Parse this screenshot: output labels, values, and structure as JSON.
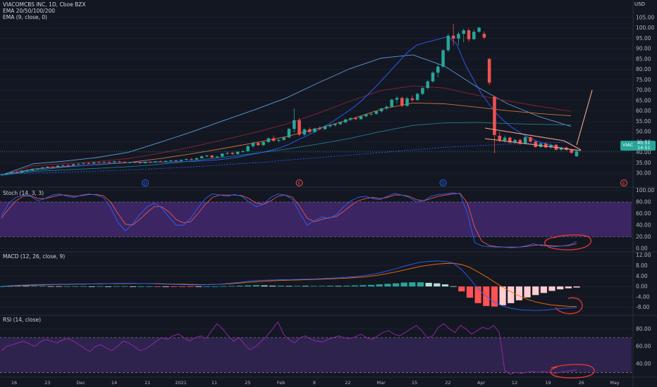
{
  "header": {
    "symbol_line": "VIACOMCBS INC, 1D, Cboe BZX",
    "ema_ribbon": "EMA 20/50/100/200",
    "ema_single": "EMA (9, close, 0)",
    "currency": "USD"
  },
  "price_tag": {
    "symbol": "VIAC",
    "value": "40.51",
    "countdown": "14:51"
  },
  "colors": {
    "background": "#131722",
    "grid": "#1f2433",
    "up": "#26a69a",
    "down": "#ef5350",
    "ema9": "#2962ff",
    "ema20": "#5e9ad6",
    "ema50": "#8b2430",
    "ema100": "#c8743a",
    "ema200": "#1e7f8a",
    "stoch_band": "#4a2b7a",
    "annotation": "#f7a48a",
    "circle": "#e53935"
  },
  "chart_data": [
    {
      "name": "price",
      "type": "candlestick",
      "ylim": [
        28,
        110
      ],
      "y_ticks": [
        30,
        35,
        40,
        45,
        50,
        55,
        60,
        65,
        70,
        75,
        80,
        85,
        90,
        95,
        100,
        105
      ],
      "last_price": 40.51,
      "candles": [
        [
          29.3,
          29.6,
          29.1,
          29.4
        ],
        [
          29.4,
          30.2,
          29.3,
          30.0
        ],
        [
          30.0,
          30.8,
          29.8,
          30.5
        ],
        [
          30.5,
          31.0,
          30.1,
          30.3
        ],
        [
          30.3,
          31.5,
          30.2,
          31.2
        ],
        [
          31.2,
          31.8,
          30.9,
          31.4
        ],
        [
          31.4,
          32.3,
          31.2,
          32.0
        ],
        [
          32.0,
          32.6,
          31.7,
          32.2
        ],
        [
          32.2,
          33.0,
          31.9,
          32.8
        ],
        [
          32.8,
          33.4,
          32.5,
          33.1
        ],
        [
          33.1,
          33.5,
          32.7,
          32.9
        ],
        [
          32.9,
          33.8,
          32.8,
          33.6
        ],
        [
          33.6,
          34.1,
          33.3,
          33.9
        ],
        [
          33.9,
          34.3,
          33.5,
          33.7
        ],
        [
          33.7,
          34.6,
          33.6,
          34.3
        ],
        [
          34.3,
          34.8,
          34.0,
          34.5
        ],
        [
          34.5,
          35.0,
          34.2,
          34.8
        ],
        [
          34.8,
          35.3,
          34.4,
          34.6
        ],
        [
          34.6,
          35.4,
          34.5,
          35.2
        ],
        [
          35.2,
          35.7,
          34.9,
          35.1
        ],
        [
          35.1,
          35.6,
          34.8,
          35.4
        ],
        [
          35.4,
          35.8,
          35.0,
          35.3
        ],
        [
          35.3,
          35.9,
          35.0,
          35.7
        ],
        [
          35.7,
          36.0,
          35.2,
          35.4
        ],
        [
          35.4,
          35.7,
          34.8,
          35.0
        ],
        [
          35.0,
          35.5,
          34.6,
          35.3
        ],
        [
          35.3,
          35.6,
          34.9,
          35.1
        ],
        [
          35.1,
          35.4,
          34.6,
          34.8
        ],
        [
          34.8,
          35.6,
          34.7,
          35.4
        ],
        [
          35.4,
          35.8,
          35.0,
          35.2
        ],
        [
          35.2,
          35.9,
          35.1,
          35.7
        ],
        [
          35.7,
          36.1,
          35.3,
          35.5
        ],
        [
          35.5,
          36.0,
          35.2,
          35.9
        ],
        [
          35.9,
          36.4,
          35.6,
          36.1
        ],
        [
          36.1,
          36.5,
          35.7,
          35.9
        ],
        [
          35.9,
          36.6,
          35.8,
          36.4
        ],
        [
          36.4,
          37.0,
          36.1,
          36.8
        ],
        [
          36.8,
          37.3,
          36.4,
          36.6
        ],
        [
          36.6,
          37.5,
          36.5,
          37.2
        ],
        [
          37.2,
          38.4,
          37.0,
          38.1
        ],
        [
          38.1,
          38.9,
          37.6,
          38.5
        ],
        [
          38.5,
          38.8,
          37.3,
          37.6
        ],
        [
          37.6,
          38.3,
          37.2,
          38.0
        ],
        [
          38.0,
          39.7,
          37.8,
          39.4
        ],
        [
          39.4,
          40.4,
          38.8,
          39.7
        ],
        [
          39.7,
          40.2,
          38.9,
          39.2
        ],
        [
          39.2,
          40.6,
          39.0,
          40.3
        ],
        [
          40.3,
          41.0,
          39.9,
          40.6
        ],
        [
          40.6,
          43.4,
          40.4,
          43.0
        ],
        [
          43.0,
          45.2,
          42.1,
          44.5
        ],
        [
          44.5,
          45.0,
          43.1,
          43.5
        ],
        [
          43.5,
          45.3,
          43.2,
          45.0
        ],
        [
          45.0,
          47.2,
          44.6,
          46.8
        ],
        [
          46.8,
          48.1,
          45.2,
          45.6
        ],
        [
          45.6,
          46.4,
          44.8,
          46.0
        ],
        [
          46.0,
          47.5,
          45.7,
          47.2
        ],
        [
          47.2,
          51.8,
          47.0,
          51.3
        ],
        [
          51.3,
          61.2,
          49.6,
          55.5
        ],
        [
          55.5,
          56.5,
          47.8,
          48.6
        ],
        [
          48.6,
          51.6,
          48.0,
          51.1
        ],
        [
          51.1,
          52.0,
          49.2,
          49.8
        ],
        [
          49.8,
          51.8,
          49.5,
          51.5
        ],
        [
          51.5,
          52.6,
          50.8,
          51.2
        ],
        [
          51.2,
          53.0,
          50.9,
          52.6
        ],
        [
          52.6,
          53.5,
          51.8,
          53.1
        ],
        [
          53.1,
          54.0,
          52.4,
          53.6
        ],
        [
          53.6,
          54.9,
          53.2,
          54.5
        ],
        [
          54.5,
          56.3,
          54.0,
          55.8
        ],
        [
          55.8,
          57.0,
          55.2,
          56.5
        ],
        [
          56.5,
          57.2,
          55.6,
          56.0
        ],
        [
          56.0,
          57.8,
          55.8,
          57.4
        ],
        [
          57.4,
          58.7,
          56.9,
          58.3
        ],
        [
          58.3,
          59.1,
          57.7,
          58.6
        ],
        [
          58.6,
          60.2,
          58.1,
          59.8
        ],
        [
          59.8,
          61.5,
          59.2,
          61.2
        ],
        [
          61.2,
          62.6,
          60.5,
          62.0
        ],
        [
          62.0,
          65.8,
          61.7,
          65.4
        ],
        [
          65.4,
          67.2,
          63.5,
          66.2
        ],
        [
          66.2,
          66.8,
          61.8,
          62.4
        ],
        [
          62.4,
          66.7,
          62.0,
          66.0
        ],
        [
          66.0,
          67.5,
          64.6,
          65.2
        ],
        [
          65.2,
          68.8,
          64.9,
          68.2
        ],
        [
          68.2,
          71.6,
          67.7,
          71.0
        ],
        [
          71.0,
          74.8,
          70.4,
          74.2
        ],
        [
          74.2,
          79.1,
          73.6,
          78.4
        ],
        [
          78.4,
          82.8,
          76.2,
          81.3
        ],
        [
          81.3,
          89.6,
          80.7,
          89.2
        ],
        [
          89.2,
          97.2,
          88.4,
          96.2
        ],
        [
          96.2,
          101.9,
          91.5,
          94.8
        ],
        [
          94.8,
          98.2,
          91.7,
          97.1
        ],
        [
          97.1,
          99.6,
          93.0,
          98.8
        ],
        [
          98.8,
          99.8,
          93.3,
          94.5
        ],
        [
          94.5,
          99.2,
          94.2,
          98.1
        ],
        [
          98.1,
          100.4,
          97.6,
          100.1
        ],
        [
          97.1,
          98.3,
          94.6,
          95.3
        ],
        [
          85.0,
          85.6,
          72.5,
          73.6
        ],
        [
          66.8,
          67.4,
          39.6,
          48.4
        ],
        [
          48.0,
          49.9,
          44.8,
          45.7
        ],
        [
          45.7,
          48.1,
          44.7,
          47.1
        ],
        [
          47.1,
          47.6,
          44.2,
          44.8
        ],
        [
          44.8,
          46.6,
          44.3,
          46.0
        ],
        [
          46.0,
          46.7,
          43.6,
          44.2
        ],
        [
          44.2,
          47.8,
          43.9,
          47.3
        ],
        [
          47.3,
          47.6,
          44.9,
          45.2
        ],
        [
          45.2,
          45.7,
          42.2,
          42.6
        ],
        [
          42.6,
          44.7,
          42.2,
          44.2
        ],
        [
          44.2,
          44.9,
          42.0,
          42.4
        ],
        [
          42.4,
          44.1,
          41.8,
          43.7
        ],
        [
          43.7,
          43.9,
          40.9,
          41.3
        ],
        [
          41.3,
          42.8,
          40.7,
          42.3
        ],
        [
          42.3,
          42.9,
          40.8,
          41.2
        ],
        [
          41.2,
          41.6,
          39.3,
          39.8
        ],
        [
          38.1,
          41.0,
          37.9,
          40.5
        ]
      ],
      "ema9": [
        29.0,
        29.7,
        30.4,
        30.9,
        31.3,
        31.7,
        32.1,
        32.5,
        32.9,
        33.3,
        33.6,
        33.9,
        34.2,
        34.5,
        34.8,
        35.0,
        35.2,
        35.3,
        35.4,
        35.4,
        35.4,
        35.4,
        35.5,
        35.6,
        35.7,
        35.9,
        36.1,
        36.4,
        36.8,
        37.3,
        38.0,
        38.8,
        39.5,
        40.3,
        41.3,
        42.4,
        43.9,
        45.8,
        47.6,
        49.5,
        51.6,
        53.8,
        56.2,
        58.8,
        61.5,
        64.6,
        68.3,
        72.2,
        76.4,
        80.6,
        84.8,
        88.8,
        91.6,
        92.9,
        93.8,
        94.9,
        95.7,
        92.1,
        82.8,
        75.6,
        68.8,
        63.4,
        58.6,
        54.8,
        51.8,
        49.3,
        47.2,
        45.5,
        44.3,
        43.2,
        42.2,
        41.5,
        40.9
      ],
      "ema_ribbon": {
        "ema20": [
          29.0,
          34.5,
          35.8,
          37.5,
          40.0,
          44.8,
          49.8,
          55.2,
          60.5,
          66.2,
          73.4,
          80.2,
          85.4,
          87.0,
          81.6,
          71.8,
          63.4,
          57.2,
          52.5
        ],
        "ema50": [
          29.0,
          33.5,
          34.7,
          35.6,
          37.0,
          39.6,
          42.6,
          46.0,
          49.6,
          53.6,
          58.8,
          64.6,
          69.8,
          72.0,
          71.0,
          67.6,
          64.8,
          62.2,
          59.8
        ],
        "ema100": [
          29.0,
          32.0,
          33.2,
          34.1,
          35.1,
          37.0,
          39.3,
          41.9,
          44.6,
          47.6,
          51.5,
          55.8,
          60.8,
          63.8,
          63.4,
          61.8,
          60.1,
          58.7,
          57.6
        ],
        "ema200": [
          29.0,
          30.8,
          31.6,
          32.3,
          33.1,
          34.3,
          35.9,
          37.6,
          39.5,
          41.6,
          44.0,
          46.7,
          50.1,
          53.0,
          54.2,
          54.4,
          53.9,
          53.5,
          53.2
        ]
      },
      "markers": [
        {
          "label": "D",
          "kind": "dividend",
          "candle_index": 28
        },
        {
          "label": "E",
          "kind": "earnings",
          "candle_index": 58
        },
        {
          "label": "D",
          "kind": "dividend",
          "candle_index": 86
        },
        {
          "label": "E",
          "kind": "earnings",
          "future_label": "May"
        }
      ]
    },
    {
      "name": "stoch",
      "type": "line",
      "title": "Stoch (14, 3, 3)",
      "ylim": [
        -5,
        102
      ],
      "y_ticks": [
        0,
        20,
        40,
        60,
        80,
        100
      ],
      "y_tick_labels": [
        "0.00",
        "20.00",
        "40.00",
        "60.00",
        "80.00",
        "100.00"
      ],
      "band": [
        20,
        80
      ],
      "k": [
        55,
        78,
        88,
        92,
        90,
        82,
        86,
        92,
        94,
        90,
        88,
        92,
        94,
        92,
        88,
        70,
        45,
        30,
        42,
        58,
        72,
        78,
        70,
        54,
        40,
        40,
        52,
        70,
        86,
        94,
        92,
        90,
        93,
        90,
        80,
        72,
        76,
        88,
        94,
        92,
        84,
        60,
        40,
        48,
        54,
        52,
        58,
        72,
        82,
        88,
        90,
        86,
        84,
        90,
        95,
        92,
        88,
        80,
        82,
        90,
        93,
        94,
        96,
        94,
        60,
        10,
        4,
        3,
        2,
        2,
        1,
        2,
        4,
        8,
        5,
        4,
        3,
        4,
        6,
        12
      ],
      "d": [
        52,
        68,
        82,
        90,
        91,
        86,
        86,
        89,
        92,
        92,
        90,
        91,
        93,
        93,
        91,
        80,
        60,
        42,
        40,
        50,
        62,
        72,
        72,
        63,
        50,
        44,
        46,
        60,
        76,
        88,
        92,
        92,
        92,
        91,
        86,
        78,
        76,
        82,
        90,
        92,
        88,
        72,
        52,
        46,
        50,
        53,
        55,
        64,
        74,
        82,
        86,
        88,
        86,
        88,
        92,
        92,
        90,
        84,
        82,
        86,
        90,
        92,
        94,
        95,
        78,
        36,
        12,
        5,
        3,
        2,
        2,
        2,
        3,
        5,
        6,
        5,
        4,
        4,
        5,
        8
      ]
    },
    {
      "name": "macd",
      "type": "line",
      "title": "MACD (12, 26, close, 9)",
      "ylim": [
        -10.5,
        13
      ],
      "y_ticks": [
        -8,
        -4,
        0,
        4,
        8,
        12
      ],
      "y_tick_labels": [
        "-8.00",
        "-4.00",
        "0.00",
        "4.00",
        "8.00",
        "12.00"
      ],
      "macd": [
        0.0,
        0.3,
        0.5,
        0.6,
        0.7,
        0.8,
        0.8,
        0.9,
        0.9,
        1.0,
        1.0,
        1.0,
        1.1,
        1.1,
        1.2,
        1.2,
        1.2,
        1.1,
        1.1,
        1.0,
        0.9,
        0.8,
        0.7,
        0.6,
        0.6,
        0.7,
        0.8,
        1.0,
        1.3,
        1.6,
        2.0,
        2.3,
        2.4,
        2.5,
        2.6,
        2.6,
        2.7,
        2.8,
        2.9,
        3.0,
        3.2,
        3.3,
        3.5,
        3.8,
        4.1,
        4.6,
        5.2,
        6.0,
        6.8,
        7.8,
        8.6,
        9.3,
        9.6,
        9.8,
        9.6,
        9.0,
        6.5,
        3.0,
        -0.8,
        -3.8,
        -6.0,
        -7.5,
        -8.4,
        -8.9,
        -9.1,
        -9.2,
        -9.1,
        -8.8,
        -8.5,
        -8.3,
        -8.1
      ],
      "signal": [
        0.0,
        0.2,
        0.3,
        0.4,
        0.5,
        0.6,
        0.7,
        0.8,
        0.8,
        0.9,
        0.9,
        1.0,
        1.0,
        1.1,
        1.1,
        1.1,
        1.2,
        1.1,
        1.1,
        1.1,
        1.0,
        0.9,
        0.9,
        0.8,
        0.7,
        0.7,
        0.8,
        0.9,
        1.1,
        1.3,
        1.6,
        1.8,
        2.0,
        2.2,
        2.3,
        2.4,
        2.5,
        2.6,
        2.7,
        2.8,
        2.9,
        3.1,
        3.2,
        3.4,
        3.6,
        4.0,
        4.4,
        5.0,
        5.6,
        6.3,
        7.0,
        7.7,
        8.2,
        8.6,
        8.8,
        8.9,
        8.4,
        7.3,
        5.6,
        3.7,
        1.7,
        -0.3,
        -2.0,
        -3.6,
        -4.9,
        -5.9,
        -6.6,
        -7.1,
        -7.4,
        -7.6,
        -7.7
      ]
    },
    {
      "name": "rsi",
      "type": "line",
      "title": "RSI (14, close)",
      "ylim": [
        27,
        95
      ],
      "y_ticks": [
        40,
        60,
        80
      ],
      "y_tick_labels": [
        "40.00",
        "60.00",
        "80.00"
      ],
      "band": [
        30,
        70
      ],
      "values": [
        55,
        60,
        62,
        64,
        66,
        63,
        60,
        65,
        68,
        66,
        64,
        67,
        69,
        66,
        62,
        58,
        54,
        60,
        62,
        58,
        55,
        60,
        66,
        64,
        60,
        55,
        57,
        61,
        66,
        70,
        68,
        72,
        74,
        70,
        66,
        70,
        72,
        69,
        78,
        86,
        80,
        72,
        66,
        70,
        62,
        56,
        60,
        66,
        72,
        80,
        88,
        74,
        68,
        64,
        70,
        72,
        68,
        66,
        65,
        68,
        70,
        72,
        70,
        69,
        71,
        74,
        70,
        68,
        72,
        76,
        78,
        74,
        72,
        76,
        80,
        84,
        78,
        70,
        72,
        82,
        86,
        80,
        76,
        84,
        80,
        74,
        78,
        82,
        80,
        84,
        76,
        32,
        28,
        30,
        29,
        30,
        31,
        30,
        31,
        30,
        29,
        30,
        31,
        32,
        33
      ]
    },
    {
      "name": "time_axis",
      "type": "axis",
      "x_tick_labels": [
        "16",
        "23",
        "Dec",
        "14",
        "21",
        "2021",
        "11",
        "25",
        "Feb",
        "8",
        "22",
        "Mar",
        "15",
        "22",
        "Apr",
        "12",
        "19",
        "26",
        "May"
      ]
    }
  ]
}
